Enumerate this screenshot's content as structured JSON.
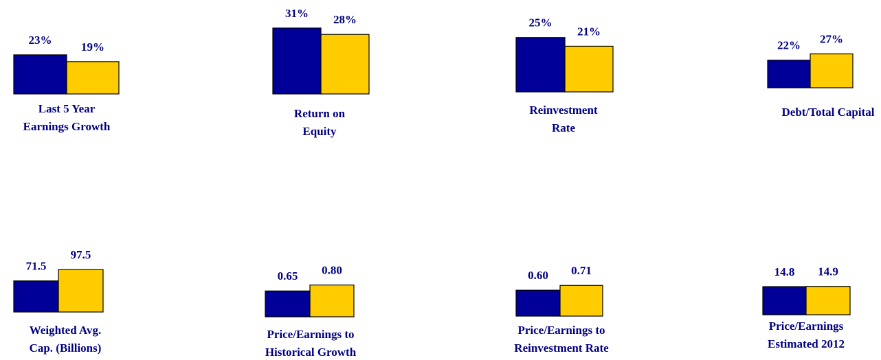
{
  "chart_data": [
    {
      "type": "bar",
      "title": [
        "Last 5 Year",
        "Earnings Growth"
      ],
      "values": [
        23,
        19
      ],
      "value_labels": [
        "23%",
        "19%"
      ],
      "colors": [
        "#000099",
        "#ffcc00"
      ]
    },
    {
      "type": "bar",
      "title": [
        "Return on",
        "Equity"
      ],
      "values": [
        31,
        28
      ],
      "value_labels": [
        "31%",
        "28%"
      ],
      "colors": [
        "#000099",
        "#ffcc00"
      ]
    },
    {
      "type": "bar",
      "title": [
        "Reinvestment",
        "Rate"
      ],
      "values": [
        25,
        21
      ],
      "value_labels": [
        "25%",
        "21%"
      ],
      "colors": [
        "#000099",
        "#ffcc00"
      ]
    },
    {
      "type": "bar",
      "title": [
        "Debt/Total Capital"
      ],
      "values": [
        22,
        27
      ],
      "value_labels": [
        "22%",
        "27%"
      ],
      "colors": [
        "#000099",
        "#ffcc00"
      ]
    },
    {
      "type": "bar",
      "title": [
        "Weighted Avg.",
        "Cap. (Billions)"
      ],
      "values": [
        71.5,
        97.5
      ],
      "colors": [
        "#000099",
        "#ffcc00"
      ]
    },
    {
      "type": "bar",
      "title": [
        "Price/Earnings to",
        "Historical Growth"
      ],
      "values": [
        0.65,
        0.8
      ],
      "value_labels": [
        "0.65",
        "0.80"
      ],
      "colors": [
        "#000099",
        "#ffcc00"
      ]
    },
    {
      "type": "bar",
      "title": [
        "Price/Earnings to",
        "Reinvestment Rate"
      ],
      "values": [
        0.6,
        0.71
      ],
      "value_labels": [
        "0.60",
        "0.71"
      ],
      "colors": [
        "#000099",
        "#ffcc00"
      ]
    },
    {
      "type": "bar",
      "title": [
        "Price/Earnings",
        "Estimated 2012"
      ],
      "values": [
        14.8,
        14.9
      ],
      "colors": [
        "#000099",
        "#ffcc00"
      ]
    }
  ]
}
